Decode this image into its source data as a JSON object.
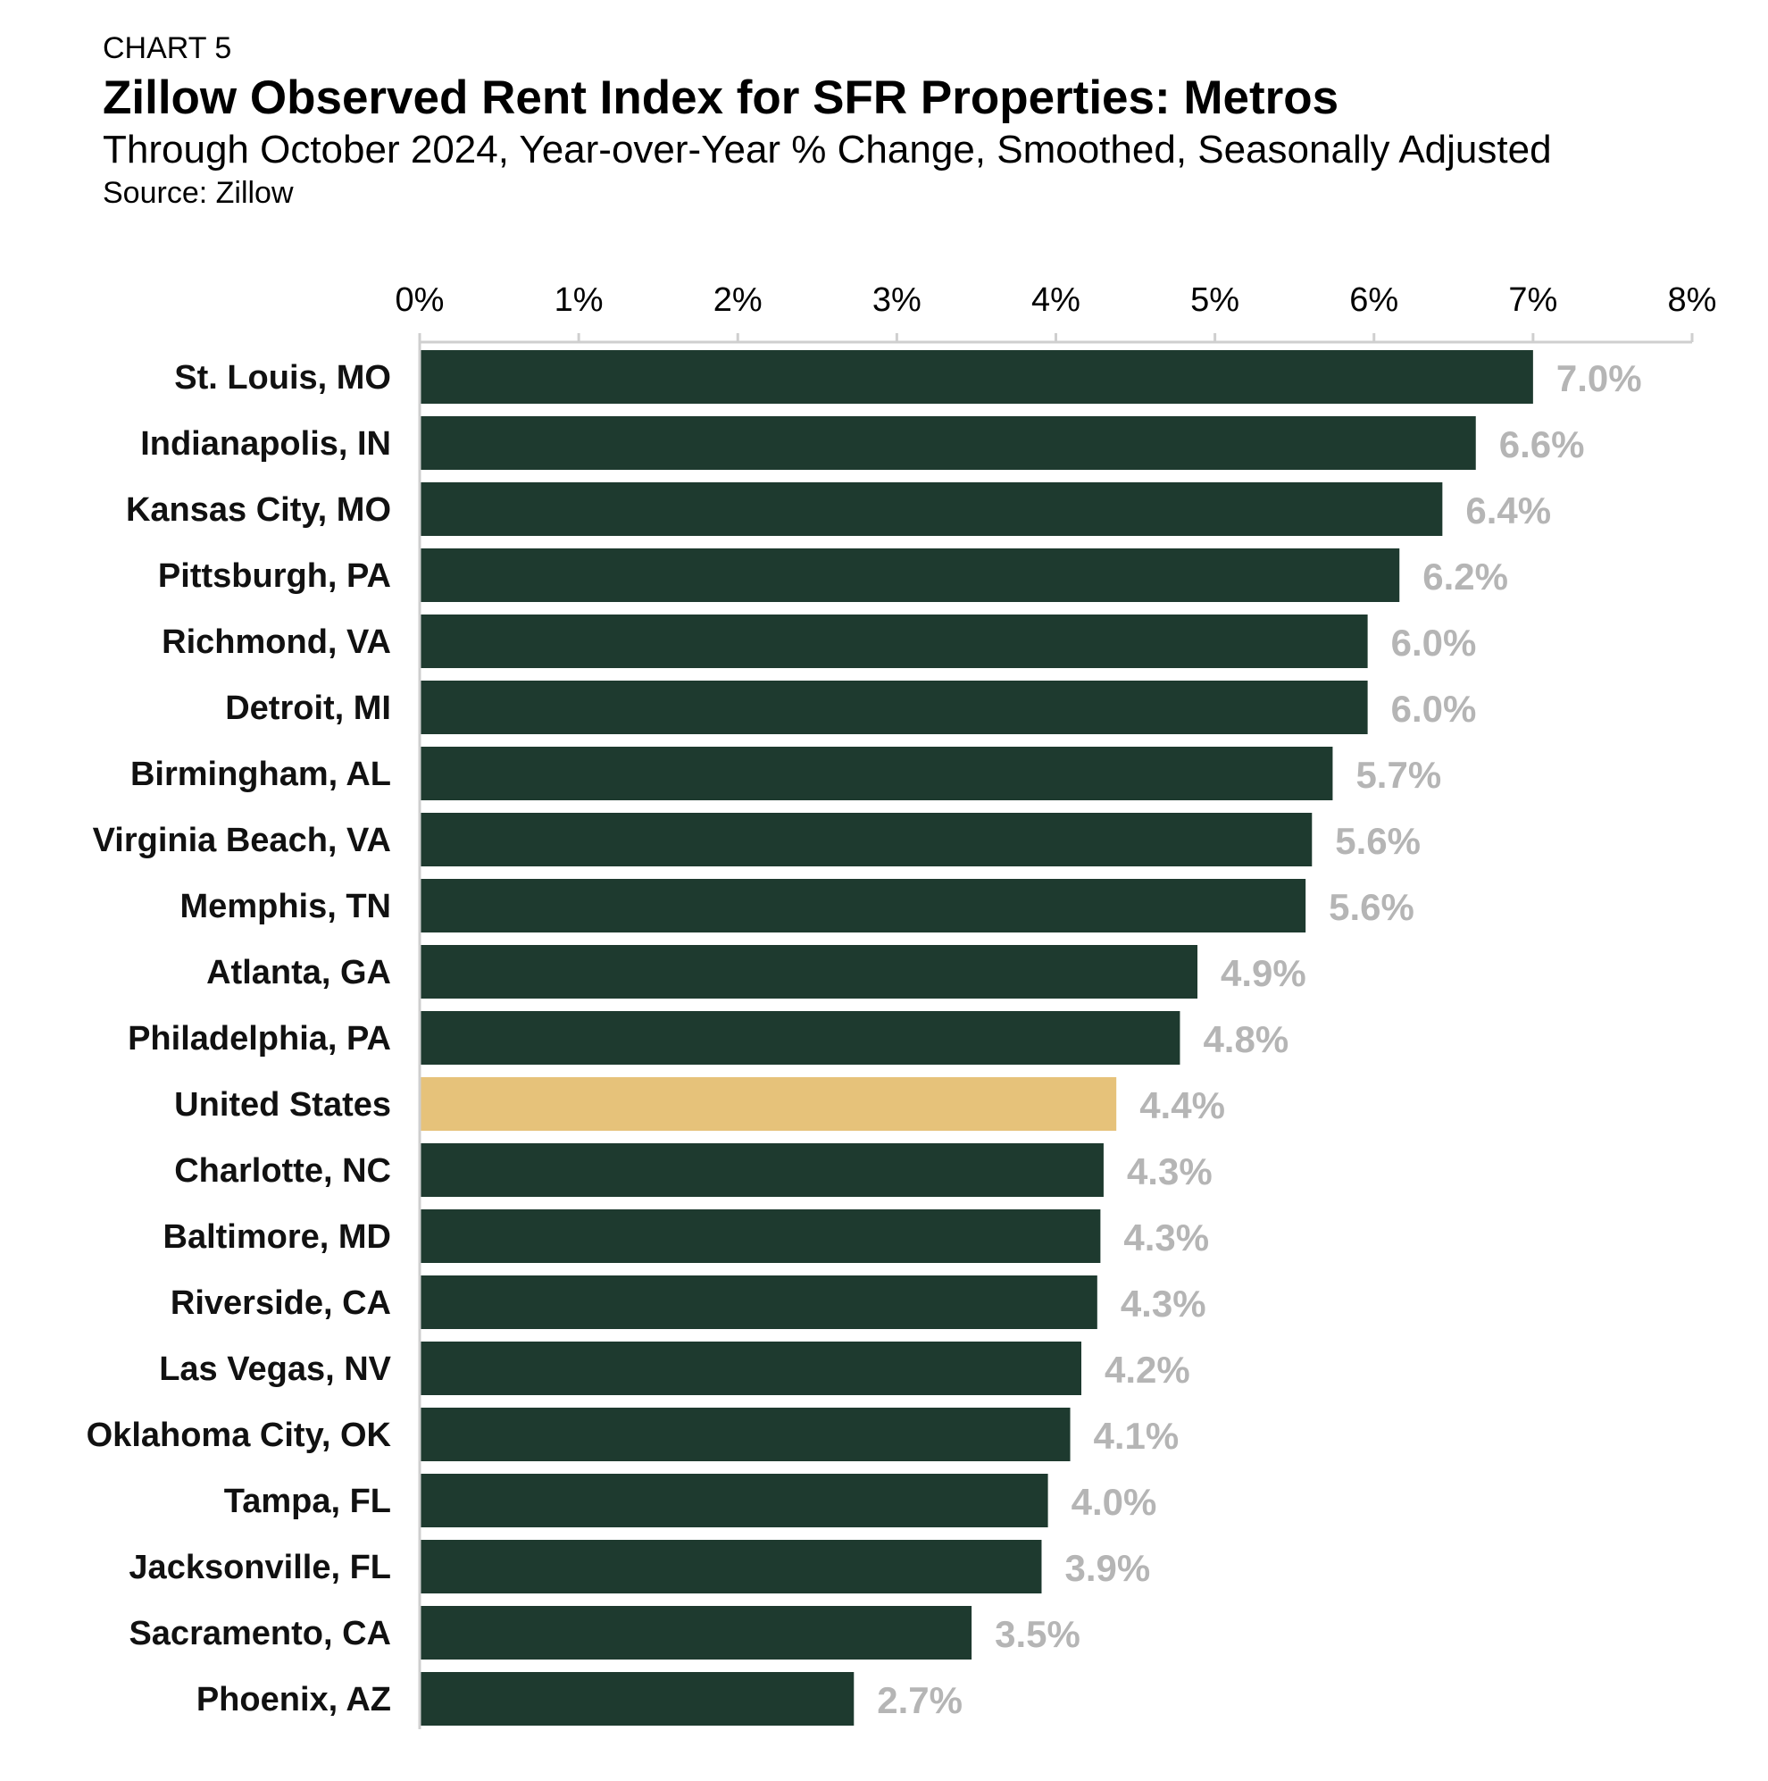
{
  "header": {
    "chart_label": "CHART 5",
    "title": "Zillow Observed Rent Index for SFR Properties: Metros",
    "subtitle": "Through October 2024, Year-over-Year % Change, Smoothed, Seasonally Adjusted",
    "source": "Source: Zillow"
  },
  "colors": {
    "bar": "#1e3a2f",
    "highlight_bar": "#e6c27a",
    "value_label": "#b5b5b5",
    "axis": "#cfcfcf"
  },
  "chart_data": {
    "type": "bar",
    "orientation": "horizontal",
    "title": "Zillow Observed Rent Index for SFR Properties: Metros",
    "subtitle": "Through October 2024, Year-over-Year % Change, Smoothed, Seasonally Adjusted",
    "xlim": [
      0,
      8
    ],
    "x_axis_position": "top",
    "x_ticks": [
      "0%",
      "1%",
      "2%",
      "3%",
      "4%",
      "5%",
      "6%",
      "7%",
      "8%"
    ],
    "grid": false,
    "highlight_category": "United States",
    "categories": [
      "St. Louis, MO",
      "Indianapolis, IN",
      "Kansas City, MO",
      "Pittsburgh, PA",
      "Richmond, VA",
      "Detroit, MI",
      "Birmingham, AL",
      "Virginia Beach, VA",
      "Memphis, TN",
      "Atlanta, GA",
      "Philadelphia, PA",
      "United States",
      "Charlotte, NC",
      "Baltimore, MD",
      "Riverside, CA",
      "Las Vegas, NV",
      "Oklahoma City, OK",
      "Tampa, FL",
      "Jacksonville, FL",
      "Sacramento, CA",
      "Phoenix, AZ"
    ],
    "values": [
      7.0,
      6.64,
      6.43,
      6.16,
      5.96,
      5.96,
      5.74,
      5.61,
      5.57,
      4.89,
      4.78,
      4.38,
      4.3,
      4.28,
      4.26,
      4.16,
      4.09,
      3.95,
      3.91,
      3.47,
      2.73
    ],
    "value_labels": [
      "7.0%",
      "6.6%",
      "6.4%",
      "6.2%",
      "6.0%",
      "6.0%",
      "5.7%",
      "5.6%",
      "5.6%",
      "4.9%",
      "4.8%",
      "4.4%",
      "4.3%",
      "4.3%",
      "4.3%",
      "4.2%",
      "4.1%",
      "4.0%",
      "3.9%",
      "3.5%",
      "2.7%"
    ]
  }
}
